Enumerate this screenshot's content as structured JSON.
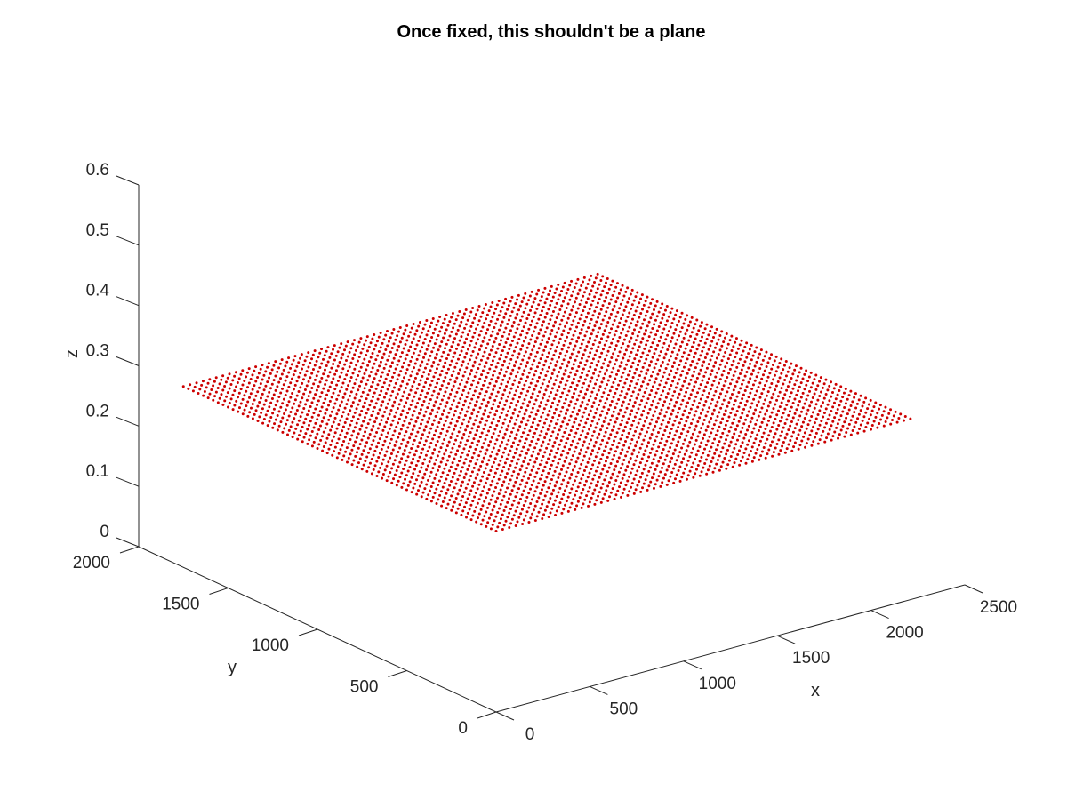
{
  "chart_data": {
    "type": "scatter3d",
    "title": "Once fixed, this shouldn't be a plane",
    "xlabel": "x",
    "ylabel": "y",
    "zlabel": "z",
    "xlim": [
      0,
      2500
    ],
    "ylim": [
      0,
      2000
    ],
    "zlim": [
      0,
      0.6
    ],
    "xticks": [
      "0",
      "500",
      "1000",
      "1500",
      "2000",
      "2500"
    ],
    "yticks": [
      "0",
      "500",
      "1000",
      "1500",
      "2000"
    ],
    "zticks": [
      "0",
      "0.1",
      "0.2",
      "0.3",
      "0.4",
      "0.5",
      "0.6"
    ],
    "grid": false,
    "marker_color": "#cc0000",
    "series": [
      {
        "x_range": [
          0,
          2210
        ],
        "y_range": [
          0,
          1750
        ],
        "z_value": 0.3,
        "grid_points": 64
      }
    ]
  }
}
